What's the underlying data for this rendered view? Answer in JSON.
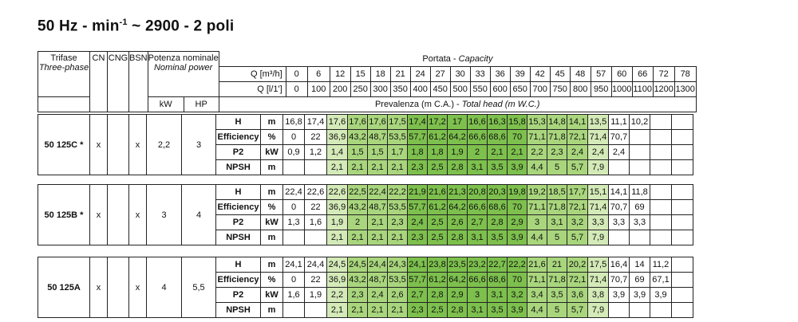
{
  "title": {
    "main": "50 Hz - min",
    "sup": "-1",
    "rest": " ~ 2900 - 2 poli"
  },
  "header": {
    "trifase": "Trifase",
    "three_phase": "Three-phase",
    "cn": "CN",
    "cng": "CNG",
    "bsn": "BSN",
    "potenza": "Potenza nominale",
    "nominal_power": "Nominal power",
    "kw": "kW",
    "hp": "HP",
    "portata": "Portata - ",
    "capacity": "Capacity",
    "q_m3h_label": "Q [m³/h]",
    "q_ls_label": "Q [l/1']",
    "prevalenza": "Prevalenza (m C.A.) - ",
    "total_head": "Total head (m W.C.)",
    "q_m3h": [
      "0",
      "6",
      "12",
      "15",
      "18",
      "21",
      "24",
      "27",
      "30",
      "33",
      "36",
      "39",
      "42",
      "45",
      "48",
      "57",
      "60",
      "66",
      "72",
      "78"
    ],
    "q_ls": [
      "0",
      "100",
      "200",
      "250",
      "300",
      "350",
      "400",
      "450",
      "500",
      "550",
      "600",
      "650",
      "700",
      "750",
      "800",
      "950",
      "1000",
      "1100",
      "1200",
      "1300"
    ]
  },
  "models": [
    {
      "name": "50 125C *",
      "cn": "x",
      "cng": "",
      "bsn": "x",
      "kw": "2,2",
      "hp": "3",
      "rows": [
        {
          "label": "H",
          "unit": "m",
          "values": [
            "16,8",
            "17,4",
            "17,6",
            "17,6",
            "17,6",
            "17,5",
            "17,4",
            "17,2",
            "17",
            "16,6",
            "16,3",
            "15,8",
            "15,3",
            "14,8",
            "14,1",
            "13,5",
            "11,1",
            "10,2",
            "",
            ""
          ]
        },
        {
          "label": "Efficiency",
          "unit": "%",
          "values": [
            "0",
            "22",
            "36,9",
            "43,2",
            "48,7",
            "53,5",
            "57,7",
            "61,2",
            "64,2",
            "66,6",
            "68,6",
            "70",
            "71,1",
            "71,8",
            "72,1",
            "71,4",
            "70,7",
            "",
            "",
            ""
          ]
        },
        {
          "label": "P2",
          "unit": "kW",
          "values": [
            "0,9",
            "1,2",
            "1,4",
            "1,5",
            "1,5",
            "1,7",
            "1,8",
            "1,8",
            "1,9",
            "2",
            "2,1",
            "2,1",
            "2,2",
            "2,3",
            "2,4",
            "2,4",
            "2,4",
            "",
            "",
            ""
          ]
        },
        {
          "label": "NPSH",
          "unit": "m",
          "values": [
            "",
            "",
            "2,1",
            "2,1",
            "2,1",
            "2,1",
            "2,3",
            "2,5",
            "2,8",
            "3,1",
            "3,5",
            "3,9",
            "4,4",
            "5",
            "5,7",
            "7,9",
            "",
            "",
            "",
            ""
          ]
        }
      ]
    },
    {
      "name": "50 125B *",
      "cn": "x",
      "cng": "",
      "bsn": "x",
      "kw": "3",
      "hp": "4",
      "rows": [
        {
          "label": "H",
          "unit": "m",
          "values": [
            "22,4",
            "22,6",
            "22,6",
            "22,5",
            "22,4",
            "22,2",
            "21,9",
            "21,6",
            "21,3",
            "20,8",
            "20,3",
            "19,8",
            "19,2",
            "18,5",
            "17,7",
            "15,1",
            "14,1",
            "11,8",
            "",
            ""
          ]
        },
        {
          "label": "Efficiency",
          "unit": "%",
          "values": [
            "0",
            "22",
            "36,9",
            "43,2",
            "48,7",
            "53,5",
            "57,7",
            "61,2",
            "64,2",
            "66,6",
            "68,6",
            "70",
            "71,1",
            "71,8",
            "72,1",
            "71,4",
            "70,7",
            "69",
            "",
            ""
          ]
        },
        {
          "label": "P2",
          "unit": "kW",
          "values": [
            "1,3",
            "1,6",
            "1,9",
            "2",
            "2,1",
            "2,3",
            "2,4",
            "2,5",
            "2,6",
            "2,7",
            "2,8",
            "2,9",
            "3",
            "3,1",
            "3,2",
            "3,3",
            "3,3",
            "3,3",
            "",
            ""
          ]
        },
        {
          "label": "NPSH",
          "unit": "m",
          "values": [
            "",
            "",
            "2,1",
            "2,1",
            "2,1",
            "2,1",
            "2,3",
            "2,5",
            "2,8",
            "3,1",
            "3,5",
            "3,9",
            "4,4",
            "5",
            "5,7",
            "7,9",
            "",
            "",
            "",
            ""
          ]
        }
      ]
    },
    {
      "name": "50 125A",
      "cn": "x",
      "cng": "",
      "bsn": "x",
      "kw": "4",
      "hp": "5,5",
      "rows": [
        {
          "label": "H",
          "unit": "m",
          "values": [
            "24,1",
            "24,4",
            "24,5",
            "24,5",
            "24,4",
            "24,3",
            "24,1",
            "23,8",
            "23,5",
            "23,2",
            "22,7",
            "22,2",
            "21,6",
            "21",
            "20,2",
            "17,5",
            "16,4",
            "14",
            "11,2",
            ""
          ]
        },
        {
          "label": "Efficiency",
          "unit": "%",
          "values": [
            "0",
            "22",
            "36,9",
            "43,2",
            "48,7",
            "53,5",
            "57,7",
            "61,2",
            "64,2",
            "66,6",
            "68,6",
            "70",
            "71,1",
            "71,8",
            "72,1",
            "71,4",
            "70,7",
            "69",
            "67,1",
            ""
          ]
        },
        {
          "label": "P2",
          "unit": "kW",
          "values": [
            "1,6",
            "1,9",
            "2,2",
            "2,3",
            "2,4",
            "2,6",
            "2,7",
            "2,8",
            "2,9",
            "3",
            "3,1",
            "3,2",
            "3,4",
            "3,5",
            "3,6",
            "3,8",
            "3,9",
            "3,9",
            "3,9",
            ""
          ]
        },
        {
          "label": "NPSH",
          "unit": "m",
          "values": [
            "",
            "",
            "2,1",
            "2,1",
            "2,1",
            "2,1",
            "2,3",
            "2,5",
            "2,8",
            "3,1",
            "3,5",
            "3,9",
            "4,4",
            "5",
            "5,7",
            "7,9",
            "",
            "",
            "",
            ""
          ]
        }
      ]
    }
  ],
  "colors": {
    "green_light": "#d4eab8",
    "green_mid": "#a9d67d",
    "green_dark": "#7dc04d"
  }
}
